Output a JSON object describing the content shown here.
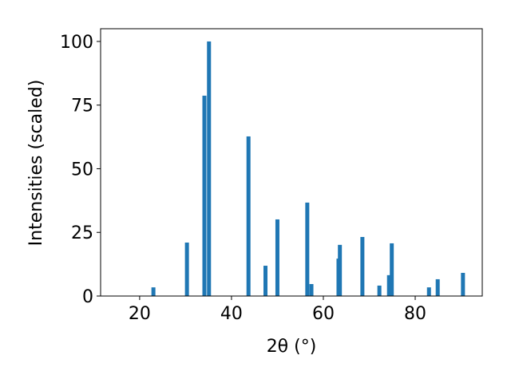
{
  "chart_data": {
    "type": "bar",
    "xlabel": "2θ (°)",
    "ylabel": "Intensities (scaled)",
    "x": [
      23.0,
      30.3,
      34.1,
      35.1,
      43.7,
      47.4,
      50.0,
      56.5,
      57.4,
      63.3,
      63.6,
      68.5,
      72.2,
      74.3,
      74.9,
      83.0,
      84.9,
      90.4
    ],
    "values": [
      3.4,
      21,
      78.7,
      100,
      62.7,
      11.9,
      30.1,
      36.7,
      4.7,
      14.7,
      20.1,
      23.2,
      4.1,
      8.2,
      20.7,
      3.4,
      6.6,
      9.1
    ],
    "color": "#1f77b4",
    "xlim": [
      11.5,
      94.6
    ],
    "xticks": [
      20,
      40,
      60,
      80
    ],
    "ylim": [
      0,
      105
    ],
    "yticks": [
      0,
      25,
      50,
      75,
      100
    ]
  }
}
